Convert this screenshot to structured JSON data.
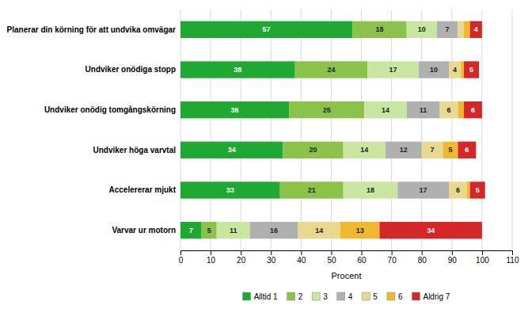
{
  "chart_data": {
    "type": "bar",
    "orientation": "horizontal",
    "stacked": true,
    "data_labels": true,
    "grid": true,
    "legend": "bottom",
    "categories": [
      "Planerar din körning för att undvika omvägar",
      "Undviker onödiga stopp",
      "Undviker onödig tomgångskörning",
      "Undviker höga varvtal",
      "Accelererar mjukt",
      "Varvar ur motorn"
    ],
    "series": [
      {
        "name": "Alltid 1",
        "color": "#1fa832",
        "values": [
          57,
          38,
          36,
          34,
          33,
          7
        ],
        "value_labels": [
          "57",
          "38",
          "36",
          "34",
          "33",
          "7"
        ]
      },
      {
        "name": "2",
        "color": "#8bc34a",
        "values": [
          18,
          24,
          25,
          20,
          21,
          5
        ],
        "value_labels": [
          "18",
          "24",
          "25",
          "20",
          "21",
          "5"
        ]
      },
      {
        "name": "3",
        "color": "#c8e6a0",
        "values": [
          10,
          17,
          14,
          14,
          18,
          11
        ],
        "value_labels": [
          "10",
          "17",
          "14",
          "14",
          "18",
          "11"
        ]
      },
      {
        "name": "4",
        "color": "#b0b0b0",
        "values": [
          7,
          10,
          11,
          12,
          17,
          16
        ],
        "value_labels": [
          "7",
          "10",
          "11",
          "12",
          "17",
          "16"
        ]
      },
      {
        "name": "5",
        "color": "#e8d890",
        "values": [
          2,
          4,
          6,
          7,
          6,
          14
        ],
        "value_labels": [
          null,
          "4",
          "6",
          "7",
          "6",
          "14"
        ]
      },
      {
        "name": "6",
        "color": "#f0b830",
        "values": [
          2,
          1,
          2,
          5,
          1,
          13
        ],
        "value_labels": [
          null,
          null,
          null,
          "5",
          null,
          "13"
        ]
      },
      {
        "name": "Aldrig 7",
        "color": "#d62728",
        "values": [
          4,
          5,
          6,
          6,
          5,
          34
        ],
        "value_labels": [
          "4",
          "5",
          "6",
          "6",
          "5",
          "34"
        ]
      }
    ],
    "xlabel": "Procent",
    "xlim": [
      0,
      110
    ],
    "xticks": [
      0,
      10,
      20,
      30,
      40,
      50,
      60,
      70,
      80,
      90,
      100,
      110
    ]
  }
}
